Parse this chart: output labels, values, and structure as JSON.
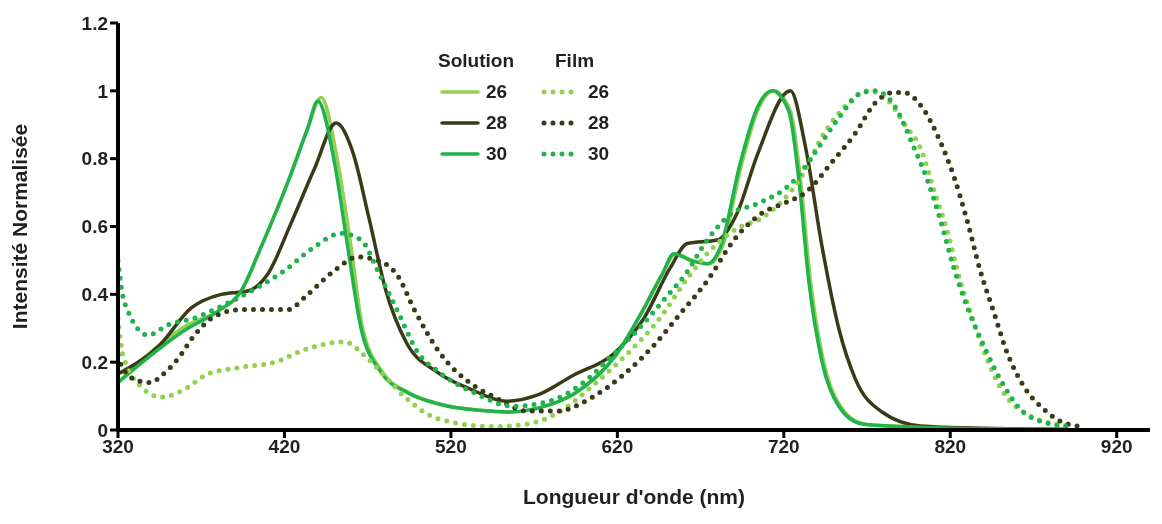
{
  "chart_data": {
    "type": "line",
    "xlabel": "Longueur d'onde (nm)",
    "ylabel": "Intensité Normalisée",
    "xlim": [
      320,
      940
    ],
    "ylim": [
      0,
      1.2
    ],
    "xticks": [
      320,
      420,
      520,
      620,
      720,
      820,
      920
    ],
    "yticks": [
      0,
      0.2,
      0.4,
      0.6,
      0.8,
      1,
      1.2
    ],
    "grid": false,
    "legend": "top",
    "marker": "none",
    "annotations": [
      "Solution",
      "Film"
    ],
    "series": [
      {
        "name": "26",
        "color": "#92d050",
        "line_style": "solid",
        "x": [
          320,
          362,
          380,
          394,
          406,
          422,
          434,
          442,
          452,
          460,
          467,
          479,
          495,
          514,
          543,
          556,
          575,
          595,
          619,
          635,
          647,
          655,
          665,
          675,
          683,
          695,
          705,
          714,
          724,
          730,
          736,
          744,
          754,
          768,
          793,
          820
        ],
        "values": [
          0.14,
          0.31,
          0.35,
          0.41,
          0.54,
          0.73,
          0.89,
          0.98,
          0.79,
          0.54,
          0.3,
          0.17,
          0.11,
          0.076,
          0.056,
          0.053,
          0.068,
          0.11,
          0.22,
          0.35,
          0.46,
          0.52,
          0.5,
          0.49,
          0.54,
          0.79,
          0.95,
          1.0,
          0.94,
          0.74,
          0.44,
          0.2,
          0.07,
          0.018,
          0.01,
          0.005
        ]
      },
      {
        "name": "28",
        "color": "#3b3a17",
        "line_style": "solid",
        "x": [
          320,
          345,
          364,
          382,
          398,
          410,
          424,
          438,
          451,
          461,
          471,
          481,
          493,
          512,
          532,
          553,
          573,
          593,
          619,
          636,
          652,
          662,
          680,
          692,
          704,
          724,
          733,
          743,
          753,
          763,
          779,
          802,
          842,
          890
        ],
        "values": [
          0.165,
          0.25,
          0.36,
          0.4,
          0.41,
          0.46,
          0.61,
          0.77,
          0.905,
          0.82,
          0.62,
          0.41,
          0.26,
          0.17,
          0.12,
          0.085,
          0.105,
          0.16,
          0.23,
          0.33,
          0.48,
          0.55,
          0.56,
          0.64,
          0.81,
          1.0,
          0.835,
          0.54,
          0.3,
          0.15,
          0.053,
          0.012,
          0.005,
          0.002
        ]
      },
      {
        "name": "30",
        "color": "#21b24b",
        "line_style": "solid",
        "x": [
          320,
          362,
          380,
          394,
          406,
          422,
          434,
          440,
          450,
          458,
          466,
          478,
          494,
          513,
          543,
          555,
          575,
          595,
          619,
          635,
          647,
          654,
          664,
          674,
          682,
          694,
          704,
          713,
          723,
          729,
          735,
          743,
          753,
          767,
          792,
          820,
          860,
          890
        ],
        "values": [
          0.14,
          0.3,
          0.35,
          0.41,
          0.54,
          0.73,
          0.89,
          0.97,
          0.79,
          0.54,
          0.3,
          0.17,
          0.11,
          0.076,
          0.056,
          0.053,
          0.068,
          0.11,
          0.22,
          0.35,
          0.46,
          0.52,
          0.5,
          0.49,
          0.54,
          0.79,
          0.95,
          1.0,
          0.94,
          0.74,
          0.44,
          0.2,
          0.07,
          0.018,
          0.01,
          0.005,
          0.003,
          0.002
        ]
      },
      {
        "name": "26",
        "color": "#92d050",
        "line_style": "dotted",
        "x": [
          320,
          323,
          334,
          346,
          358,
          374,
          394,
          414,
          434,
          456,
          468,
          480,
          494,
          513,
          546,
          566,
          585,
          605,
          625,
          644,
          664,
          674,
          694,
          705,
          717,
          731,
          743,
          755,
          771,
          782,
          792,
          803,
          810,
          818,
          826,
          834,
          842,
          852,
          866,
          878,
          892
        ],
        "values": [
          0.33,
          0.22,
          0.127,
          0.097,
          0.115,
          0.165,
          0.185,
          0.2,
          0.24,
          0.26,
          0.22,
          0.16,
          0.09,
          0.032,
          0.01,
          0.018,
          0.053,
          0.13,
          0.22,
          0.32,
          0.46,
          0.52,
          0.6,
          0.62,
          0.665,
          0.75,
          0.865,
          0.945,
          1.0,
          0.975,
          0.905,
          0.82,
          0.71,
          0.59,
          0.44,
          0.32,
          0.21,
          0.11,
          0.047,
          0.023,
          0.012
        ]
      },
      {
        "name": "28",
        "color": "#3b3a17",
        "line_style": "dotted",
        "x": [
          320,
          322,
          332,
          340,
          346,
          356,
          366,
          378,
          394,
          414,
          422,
          434,
          450,
          464,
          476,
          488,
          498,
          513,
          534,
          545,
          566,
          584,
          605,
          623,
          642,
          659,
          674,
          690,
          707,
          721,
          733,
          749,
          763,
          775,
          786,
          792,
          804,
          814,
          822,
          830,
          838,
          846,
          854,
          864,
          876,
          890,
          900
        ],
        "values": [
          0.22,
          0.19,
          0.145,
          0.14,
          0.16,
          0.21,
          0.28,
          0.335,
          0.355,
          0.355,
          0.355,
          0.4,
          0.47,
          0.51,
          0.5,
          0.455,
          0.355,
          0.23,
          0.13,
          0.1,
          0.056,
          0.056,
          0.097,
          0.16,
          0.25,
          0.35,
          0.44,
          0.56,
          0.64,
          0.67,
          0.7,
          0.79,
          0.875,
          0.965,
          0.995,
          0.995,
          0.945,
          0.85,
          0.75,
          0.62,
          0.47,
          0.35,
          0.23,
          0.13,
          0.062,
          0.018,
          0.01
        ]
      },
      {
        "name": "30",
        "color": "#21b24b",
        "line_style": "dotted",
        "x": [
          320,
          322,
          326,
          338,
          350,
          366,
          382,
          402,
          420,
          438,
          454,
          466,
          477,
          488,
          500,
          513,
          534,
          557,
          577,
          597,
          617,
          635,
          649,
          661,
          674,
          689,
          703,
          727,
          739,
          753,
          767,
          775,
          786,
          798,
          806,
          814,
          822,
          830,
          840,
          850,
          862,
          876,
          892
        ],
        "values": [
          0.5,
          0.42,
          0.35,
          0.28,
          0.31,
          0.33,
          0.365,
          0.415,
          0.47,
          0.54,
          0.58,
          0.56,
          0.46,
          0.35,
          0.23,
          0.17,
          0.11,
          0.07,
          0.082,
          0.13,
          0.22,
          0.31,
          0.39,
          0.46,
          0.56,
          0.64,
          0.665,
          0.74,
          0.82,
          0.92,
          0.995,
          1.0,
          0.96,
          0.835,
          0.74,
          0.62,
          0.48,
          0.365,
          0.25,
          0.15,
          0.062,
          0.023,
          0.01
        ]
      }
    ]
  }
}
